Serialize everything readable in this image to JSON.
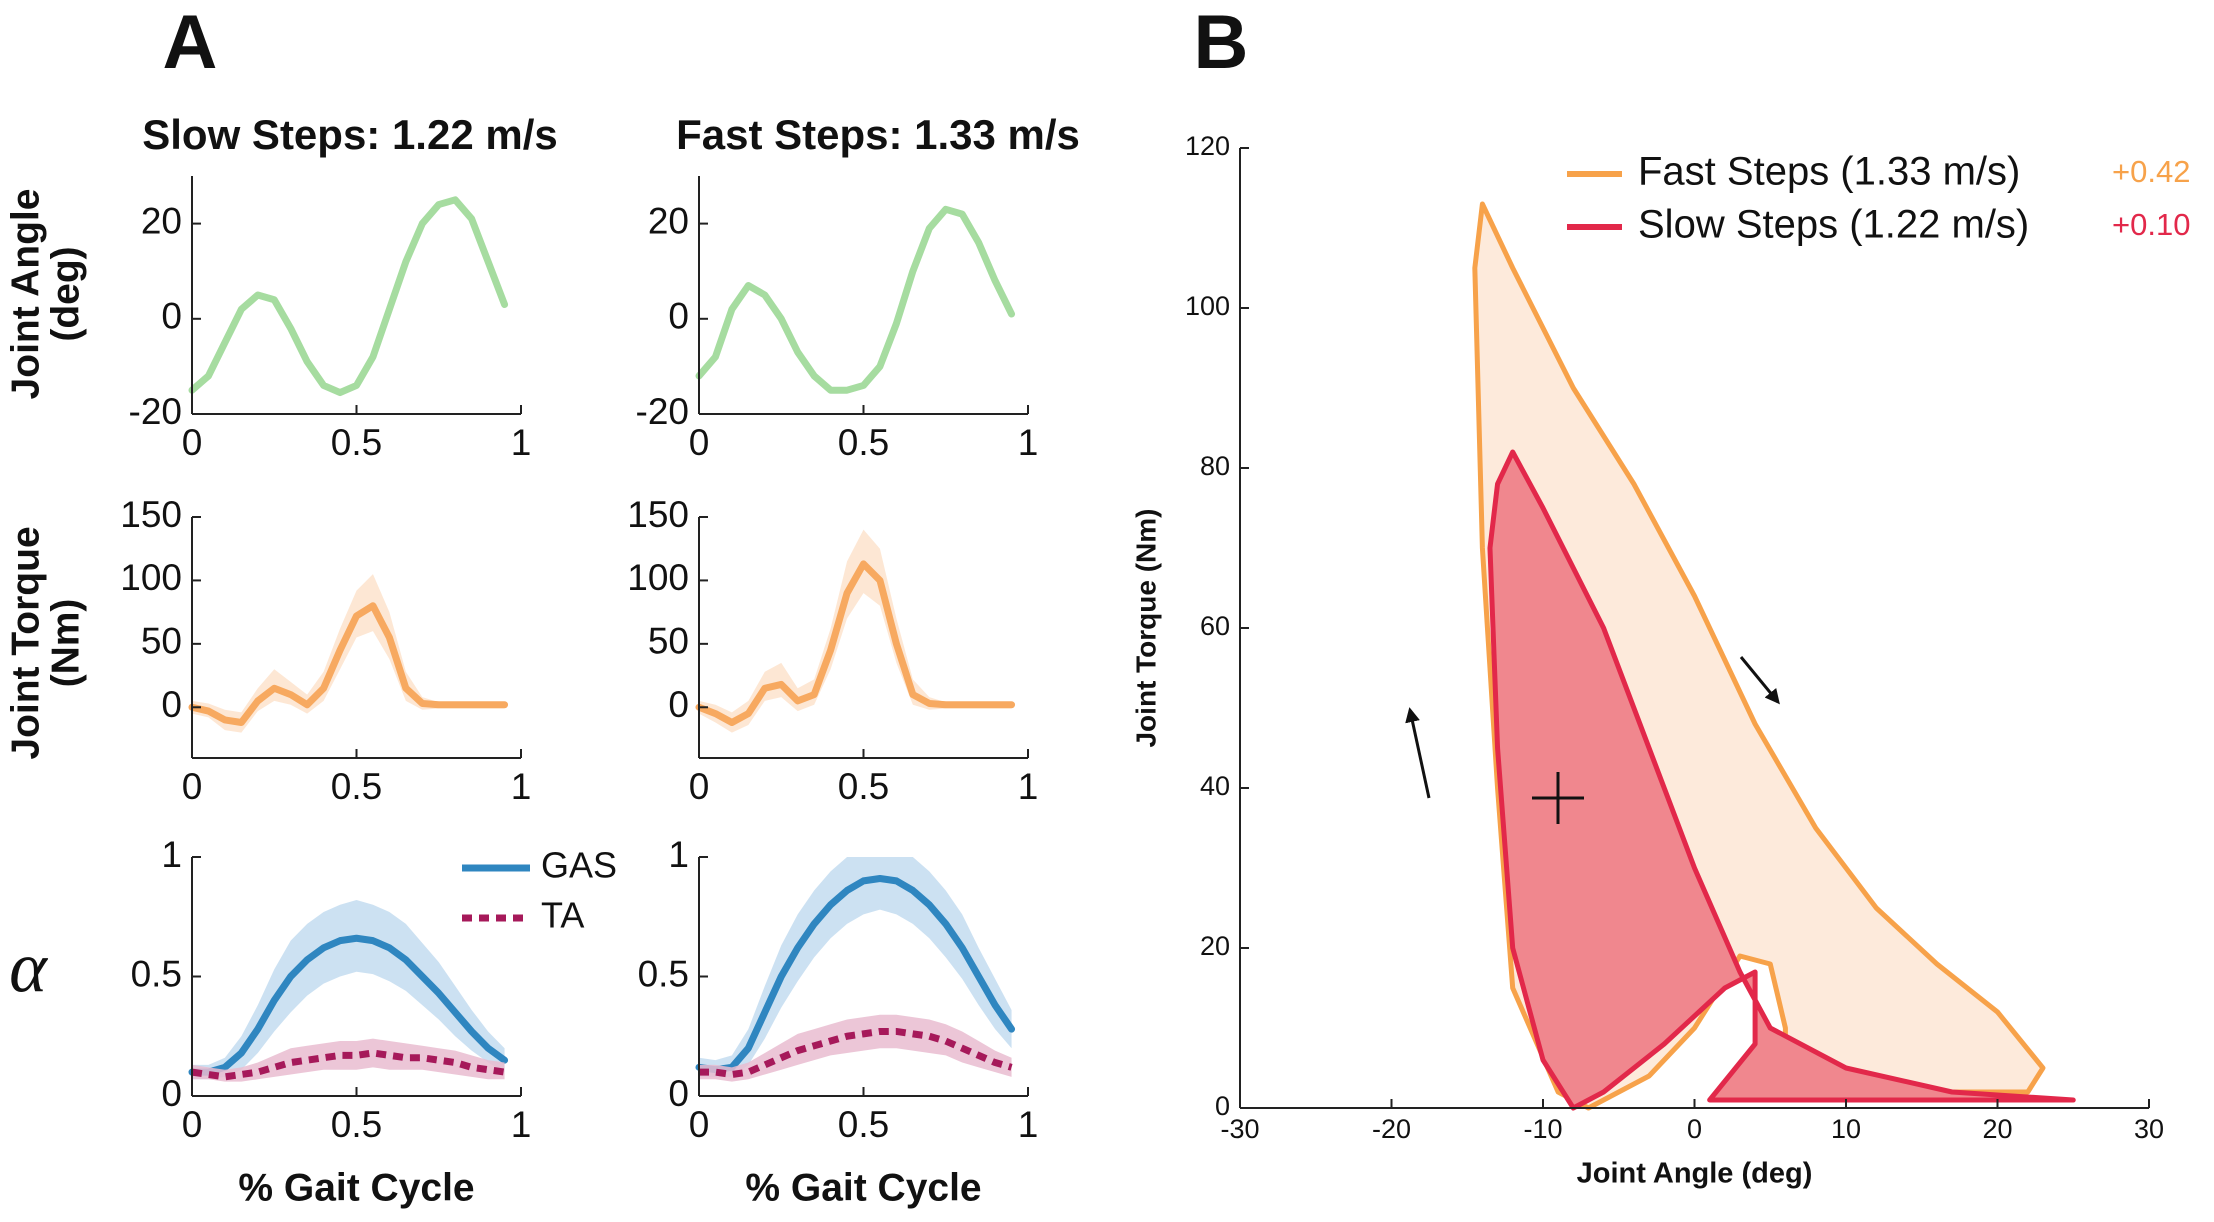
{
  "panel_labels": [
    "A",
    "B"
  ],
  "chart_data": [
    {
      "type": "line",
      "title": "Slow Steps: 1.22 m/s",
      "ylabel": [
        "Joint Angle",
        "(deg)"
      ],
      "x": [
        0,
        0.05,
        0.1,
        0.15,
        0.2,
        0.25,
        0.3,
        0.35,
        0.4,
        0.45,
        0.5,
        0.55,
        0.6,
        0.65,
        0.7,
        0.75,
        0.8,
        0.85,
        0.9,
        0.95
      ],
      "series": [
        {
          "color": "#a6dca0",
          "values": [
            -15,
            -12,
            -5,
            2,
            5,
            4,
            -2,
            -9,
            -14,
            -15.5,
            -14,
            -8,
            2,
            12,
            20,
            24,
            25,
            21,
            12,
            3
          ]
        }
      ],
      "xlim": [
        0,
        1
      ],
      "ylim": [
        -20,
        30
      ],
      "xticks": [
        0,
        0.5,
        1
      ],
      "yticks": [
        -20,
        0,
        20
      ]
    },
    {
      "type": "line",
      "title": "Fast Steps: 1.33 m/s",
      "x": [
        0,
        0.05,
        0.1,
        0.15,
        0.2,
        0.25,
        0.3,
        0.35,
        0.4,
        0.45,
        0.5,
        0.55,
        0.6,
        0.65,
        0.7,
        0.75,
        0.8,
        0.85,
        0.9,
        0.95
      ],
      "series": [
        {
          "color": "#a6dca0",
          "values": [
            -12,
            -8,
            2,
            7,
            5,
            0,
            -7,
            -12,
            -15,
            -15,
            -14,
            -10,
            -1,
            10,
            19,
            23,
            22,
            16,
            8,
            1
          ]
        }
      ],
      "xlim": [
        0,
        1
      ],
      "ylim": [
        -20,
        30
      ],
      "xticks": [
        0,
        0.5,
        1
      ],
      "yticks": [
        -20,
        0,
        20
      ]
    },
    {
      "type": "line",
      "ylabel": [
        "Joint Torque",
        "(Nm)"
      ],
      "x": [
        0,
        0.05,
        0.1,
        0.15,
        0.2,
        0.25,
        0.3,
        0.35,
        0.4,
        0.45,
        0.5,
        0.55,
        0.6,
        0.65,
        0.7,
        0.75,
        0.8,
        0.85,
        0.9,
        0.95
      ],
      "series": [
        {
          "color": "#f7a960",
          "band_color": "#fde3cc",
          "values": [
            0,
            -3,
            -10,
            -12,
            5,
            15,
            10,
            2,
            15,
            45,
            72,
            80,
            55,
            15,
            3,
            2,
            2,
            2,
            2,
            2
          ],
          "lower": [
            -5,
            -8,
            -18,
            -20,
            -3,
            5,
            2,
            -5,
            5,
            30,
            55,
            60,
            38,
            5,
            -2,
            -1,
            -1,
            -1,
            -1,
            -1
          ],
          "upper": [
            5,
            3,
            -2,
            -4,
            15,
            30,
            20,
            10,
            28,
            62,
            92,
            105,
            75,
            28,
            8,
            4,
            4,
            4,
            4,
            4
          ]
        }
      ],
      "xlim": [
        0,
        1
      ],
      "ylim": [
        -40,
        150
      ],
      "xticks": [
        0,
        0.5,
        1
      ],
      "yticks": [
        0,
        50,
        100,
        150
      ]
    },
    {
      "type": "line",
      "x": [
        0,
        0.05,
        0.1,
        0.15,
        0.2,
        0.25,
        0.3,
        0.35,
        0.4,
        0.45,
        0.5,
        0.55,
        0.6,
        0.65,
        0.7,
        0.75,
        0.8,
        0.85,
        0.9,
        0.95
      ],
      "series": [
        {
          "color": "#f7a960",
          "band_color": "#fde3cc",
          "values": [
            0,
            -5,
            -12,
            -5,
            15,
            18,
            5,
            10,
            45,
            90,
            113,
            100,
            50,
            10,
            3,
            2,
            2,
            2,
            2,
            2
          ],
          "lower": [
            -5,
            -12,
            -20,
            -14,
            5,
            8,
            -3,
            2,
            30,
            70,
            90,
            80,
            35,
            2,
            -2,
            -1,
            -1,
            -1,
            -1,
            -1
          ],
          "upper": [
            5,
            2,
            -4,
            5,
            28,
            35,
            15,
            22,
            62,
            115,
            140,
            125,
            70,
            22,
            8,
            4,
            4,
            4,
            4,
            4
          ]
        }
      ],
      "xlim": [
        0,
        1
      ],
      "ylim": [
        -40,
        150
      ],
      "xticks": [
        0,
        0.5,
        1
      ],
      "yticks": [
        0,
        50,
        100,
        150
      ]
    },
    {
      "type": "line",
      "ylabel": [
        "α"
      ],
      "xlabel": "% Gait Cycle",
      "legend": true,
      "x": [
        0,
        0.05,
        0.1,
        0.15,
        0.2,
        0.25,
        0.3,
        0.35,
        0.4,
        0.45,
        0.5,
        0.55,
        0.6,
        0.65,
        0.7,
        0.75,
        0.8,
        0.85,
        0.9,
        0.95
      ],
      "series": [
        {
          "name": "GAS",
          "color": "#2f86c0",
          "band_color": "#c3dcf0",
          "values": [
            0.1,
            0.1,
            0.12,
            0.18,
            0.28,
            0.4,
            0.5,
            0.57,
            0.62,
            0.65,
            0.66,
            0.65,
            0.62,
            0.57,
            0.5,
            0.43,
            0.35,
            0.27,
            0.2,
            0.15
          ],
          "lower": [
            0.07,
            0.07,
            0.08,
            0.11,
            0.18,
            0.27,
            0.35,
            0.42,
            0.47,
            0.5,
            0.52,
            0.51,
            0.48,
            0.44,
            0.38,
            0.32,
            0.25,
            0.19,
            0.14,
            0.1
          ],
          "upper": [
            0.13,
            0.13,
            0.16,
            0.25,
            0.38,
            0.53,
            0.65,
            0.72,
            0.77,
            0.8,
            0.82,
            0.8,
            0.77,
            0.72,
            0.64,
            0.56,
            0.46,
            0.36,
            0.27,
            0.2
          ]
        },
        {
          "name": "TA",
          "color": "#a6195a",
          "band_color": "#e9bcd0",
          "dash": true,
          "values": [
            0.1,
            0.09,
            0.08,
            0.09,
            0.1,
            0.12,
            0.14,
            0.15,
            0.16,
            0.17,
            0.17,
            0.18,
            0.17,
            0.16,
            0.16,
            0.15,
            0.14,
            0.12,
            0.11,
            0.1
          ],
          "lower": [
            0.07,
            0.07,
            0.06,
            0.06,
            0.07,
            0.08,
            0.09,
            0.1,
            0.11,
            0.11,
            0.11,
            0.12,
            0.11,
            0.11,
            0.11,
            0.1,
            0.09,
            0.08,
            0.07,
            0.07
          ],
          "upper": [
            0.13,
            0.12,
            0.11,
            0.12,
            0.14,
            0.17,
            0.2,
            0.21,
            0.22,
            0.23,
            0.23,
            0.24,
            0.23,
            0.22,
            0.21,
            0.2,
            0.19,
            0.17,
            0.15,
            0.14
          ]
        }
      ],
      "xlim": [
        0,
        1
      ],
      "ylim": [
        0,
        1
      ],
      "xticks": [
        0,
        0.5,
        1
      ],
      "yticks": [
        0,
        0.5,
        1
      ]
    },
    {
      "type": "line",
      "xlabel": "% Gait Cycle",
      "x": [
        0,
        0.05,
        0.1,
        0.15,
        0.2,
        0.25,
        0.3,
        0.35,
        0.4,
        0.45,
        0.5,
        0.55,
        0.6,
        0.65,
        0.7,
        0.75,
        0.8,
        0.85,
        0.9,
        0.95
      ],
      "series": [
        {
          "color": "#2f86c0",
          "band_color": "#c3dcf0",
          "values": [
            0.12,
            0.11,
            0.12,
            0.2,
            0.35,
            0.5,
            0.62,
            0.72,
            0.8,
            0.86,
            0.9,
            0.91,
            0.9,
            0.86,
            0.8,
            0.72,
            0.62,
            0.5,
            0.38,
            0.28
          ],
          "lower": [
            0.08,
            0.08,
            0.08,
            0.13,
            0.24,
            0.37,
            0.48,
            0.58,
            0.66,
            0.72,
            0.76,
            0.78,
            0.76,
            0.72,
            0.66,
            0.58,
            0.49,
            0.38,
            0.28,
            0.2
          ],
          "upper": [
            0.16,
            0.15,
            0.17,
            0.28,
            0.46,
            0.63,
            0.76,
            0.86,
            0.94,
            1,
            1,
            1,
            1,
            1,
            0.94,
            0.86,
            0.76,
            0.62,
            0.49,
            0.36
          ]
        },
        {
          "color": "#a6195a",
          "band_color": "#e9bcd0",
          "dash": true,
          "values": [
            0.1,
            0.1,
            0.09,
            0.1,
            0.13,
            0.16,
            0.19,
            0.21,
            0.23,
            0.25,
            0.26,
            0.27,
            0.27,
            0.26,
            0.25,
            0.23,
            0.2,
            0.17,
            0.14,
            0.12
          ],
          "lower": [
            0.07,
            0.07,
            0.06,
            0.07,
            0.09,
            0.11,
            0.13,
            0.15,
            0.17,
            0.18,
            0.19,
            0.2,
            0.2,
            0.19,
            0.18,
            0.17,
            0.14,
            0.12,
            0.1,
            0.08
          ],
          "upper": [
            0.13,
            0.13,
            0.12,
            0.14,
            0.18,
            0.22,
            0.26,
            0.28,
            0.3,
            0.32,
            0.33,
            0.34,
            0.34,
            0.33,
            0.32,
            0.3,
            0.27,
            0.23,
            0.19,
            0.16
          ]
        }
      ],
      "xlim": [
        0,
        1
      ],
      "ylim": [
        0,
        1
      ],
      "xticks": [
        0,
        0.5,
        1
      ],
      "yticks": [
        0,
        0.5,
        1
      ]
    },
    {
      "type": "line",
      "xlabel": "Joint Angle (deg)",
      "ylabel": [
        "Joint Torque (Nm)"
      ],
      "legend": true,
      "series": [
        {
          "name": "Fast Steps (1.33 m/s)",
          "note": "+0.42",
          "color": "#f7a24a",
          "fill": "#fdeadb",
          "x": [
            -14.5,
            -14,
            -12,
            -8,
            -4,
            0,
            4,
            8,
            12,
            16,
            20,
            23,
            22,
            10,
            6,
            6,
            5,
            3,
            0,
            -3,
            -7,
            -9,
            -12,
            -13,
            -14,
            -14.5
          ],
          "values": [
            105,
            113,
            105,
            90,
            78,
            64,
            48,
            35,
            25,
            18,
            12,
            5,
            2,
            2,
            2,
            10,
            18,
            19,
            10,
            4,
            0,
            2,
            15,
            40,
            70,
            105
          ]
        },
        {
          "name": "Slow Steps (1.22 m/s)",
          "note": "+0.10",
          "color": "#e2284a",
          "fill": "#f0878e",
          "x": [
            -13,
            -12,
            -10,
            -6,
            -3,
            0,
            3,
            5,
            10,
            17,
            25,
            5,
            1,
            4,
            4,
            2,
            -2,
            -6,
            -8,
            -10,
            -12,
            -13,
            -13.5,
            -13
          ],
          "values": [
            78,
            82,
            75,
            60,
            45,
            30,
            17,
            10,
            5,
            2,
            1,
            1,
            1,
            8,
            17,
            15,
            8,
            2,
            0,
            6,
            20,
            45,
            70,
            78
          ]
        }
      ],
      "xlim": [
        -30,
        30
      ],
      "ylim": [
        0,
        120
      ],
      "xticks": [
        -30,
        -20,
        -10,
        0,
        10,
        20,
        30
      ],
      "yticks": [
        0,
        20,
        40,
        60,
        80,
        100,
        120
      ]
    }
  ]
}
